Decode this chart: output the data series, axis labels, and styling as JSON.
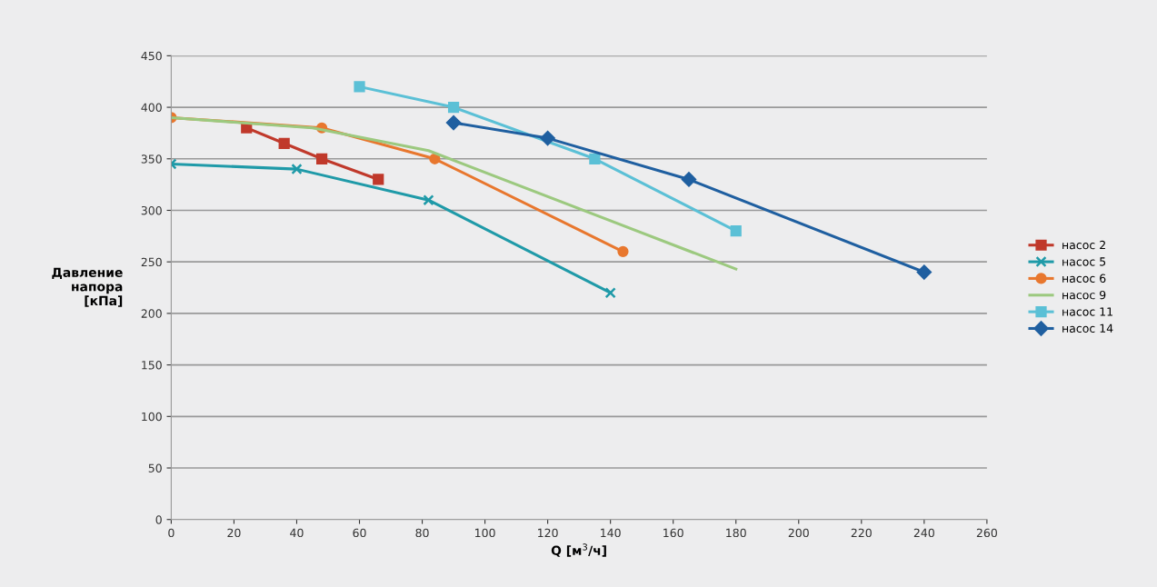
{
  "chart_data": {
    "type": "line",
    "xlabel": "Q [м$^{3}$/ч]",
    "ylabel": "Давление\nнапора\n[кПа]",
    "xlim": [
      0,
      260
    ],
    "xticks": [
      0,
      20,
      40,
      60,
      80,
      100,
      120,
      140,
      160,
      180,
      200,
      220,
      240,
      260
    ],
    "ylim": [
      0,
      450
    ],
    "yticks": [
      0,
      50,
      100,
      150,
      200,
      250,
      300,
      350,
      400,
      450
    ],
    "grid": "y",
    "legend": "right",
    "series": [
      {
        "name": "насос 2",
        "color": "#c0392b",
        "marker": "square",
        "x": [
          24,
          36,
          48,
          66
        ],
        "values": [
          380,
          365,
          350,
          330
        ]
      },
      {
        "name": "насос 5",
        "color": "#1f9aa8",
        "marker": "cross",
        "x": [
          0,
          40,
          82,
          140
        ],
        "values": [
          345,
          340,
          310,
          220
        ]
      },
      {
        "name": "насос 6",
        "color": "#e8772e",
        "marker": "circle",
        "x": [
          0,
          48,
          84,
          144
        ],
        "values": [
          390,
          380,
          350,
          260
        ]
      },
      {
        "name": "насос 9",
        "color": "#9cc97f",
        "marker": "none",
        "x": [
          0,
          45,
          82,
          180
        ],
        "values": [
          390,
          380,
          358,
          243
        ]
      },
      {
        "name": "насос 11",
        "color": "#5bc0d6",
        "marker": "square",
        "x": [
          60,
          90,
          135,
          180
        ],
        "values": [
          420,
          400,
          350,
          280
        ]
      },
      {
        "name": "насос 14",
        "color": "#1f5fa0",
        "marker": "diamond",
        "x": [
          90,
          120,
          165,
          240
        ],
        "values": [
          385,
          370,
          330,
          240
        ]
      }
    ]
  }
}
